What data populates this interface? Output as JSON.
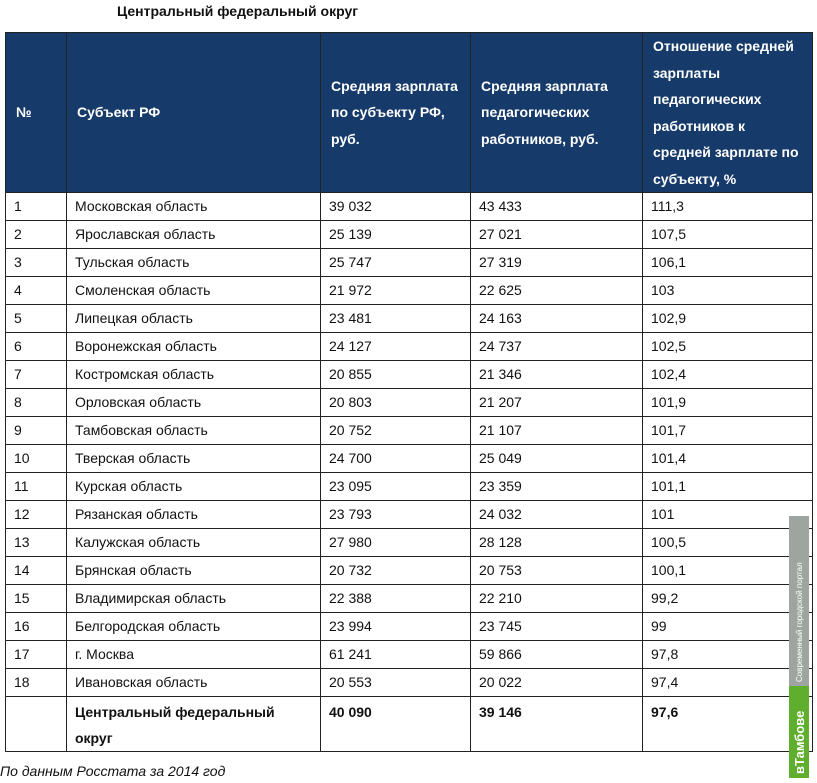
{
  "title": "Центральный федеральный округ",
  "headers": {
    "num": "№",
    "subject": "Субъект РФ",
    "avg_salary": "Средняя зарплата по субъекту РФ, руб.",
    "teacher_salary": "Средняя зарплата педагогических работников, руб.",
    "ratio": "Отношение средней зарплаты педагогических работников к средней зарплате по субъекту, %"
  },
  "rows": [
    {
      "num": "1",
      "subject": "Московская область",
      "avg": "39 032",
      "teacher": "43 433",
      "ratio": "111,3"
    },
    {
      "num": "2",
      "subject": "Ярославская область",
      "avg": "25 139",
      "teacher": "27 021",
      "ratio": "107,5"
    },
    {
      "num": "3",
      "subject": "Тульская область",
      "avg": "25 747",
      "teacher": "27 319",
      "ratio": "106,1"
    },
    {
      "num": "4",
      "subject": "Смоленская область",
      "avg": "21 972",
      "teacher": "22 625",
      "ratio": "103"
    },
    {
      "num": "5",
      "subject": "Липецкая область",
      "avg": "23 481",
      "teacher": "24 163",
      "ratio": "102,9"
    },
    {
      "num": "6",
      "subject": "Воронежская область",
      "avg": "24 127",
      "teacher": "24 737",
      "ratio": "102,5"
    },
    {
      "num": "7",
      "subject": "Костромская область",
      "avg": "20 855",
      "teacher": "21 346",
      "ratio": "102,4"
    },
    {
      "num": "8",
      "subject": "Орловская область",
      "avg": "20 803",
      "teacher": "21 207",
      "ratio": "101,9"
    },
    {
      "num": "9",
      "subject": "Тамбовская область",
      "avg": "20 752",
      "teacher": "21 107",
      "ratio": "101,7"
    },
    {
      "num": "10",
      "subject": "Тверская область",
      "avg": "24 700",
      "teacher": "25 049",
      "ratio": "101,4"
    },
    {
      "num": "11",
      "subject": "Курская область",
      "avg": "23 095",
      "teacher": "23 359",
      "ratio": "101,1"
    },
    {
      "num": "12",
      "subject": "Рязанская область",
      "avg": "23 793",
      "teacher": "24 032",
      "ratio": "101"
    },
    {
      "num": "13",
      "subject": "Калужская область",
      "avg": "27 980",
      "teacher": "28 128",
      "ratio": "100,5"
    },
    {
      "num": "14",
      "subject": "Брянская область",
      "avg": "20 732",
      "teacher": "20 753",
      "ratio": "100,1"
    },
    {
      "num": "15",
      "subject": "Владимирская область",
      "avg": "22 388",
      "teacher": "22 210",
      "ratio": "99,2"
    },
    {
      "num": "16",
      "subject": "Белгородская область",
      "avg": "23 994",
      "teacher": "23 745",
      "ratio": "99"
    },
    {
      "num": "17",
      "subject": "г. Москва",
      "avg": "61 241",
      "teacher": "59 866",
      "ratio": "97,8"
    },
    {
      "num": "18",
      "subject": "Ивановская область",
      "avg": "20 553",
      "teacher": "20 022",
      "ratio": "97,4"
    }
  ],
  "total": {
    "num": "",
    "subject": "Центральный федеральный округ",
    "avg": "40 090",
    "teacher": "39 146",
    "ratio": "97,6"
  },
  "footnote": "По данным Росстата за 2014 год",
  "watermark": {
    "tagline": "Современный городской портал",
    "brand": "вТамбове",
    "colors": {
      "tagline_bg": "#9ea5a0",
      "brand_bg": "#5fae2e"
    }
  },
  "colors": {
    "header_bg": "#163a6a",
    "header_text": "#ffffff",
    "border": "#222222"
  }
}
